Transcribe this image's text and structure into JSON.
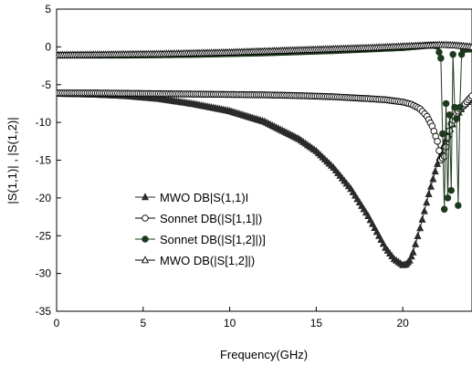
{
  "chart_data": {
    "type": "line",
    "xlabel": "Frequency(GHz)",
    "ylabel": "|S(1,1)| , |S(1,2)|",
    "xlim": [
      0,
      24
    ],
    "ylim": [
      -35,
      5
    ],
    "xticks": [
      0,
      5,
      10,
      15,
      20
    ],
    "yticks": [
      5,
      0,
      -5,
      -10,
      -15,
      -20,
      -25,
      -30,
      -35
    ],
    "grid": false,
    "legend_position": "lower-left",
    "series": [
      {
        "name": "MWO DB|S(1,1)I",
        "marker": "filled-triangle",
        "color": "#2a2a2a",
        "x": [
          0,
          2,
          4,
          6,
          8,
          10,
          12,
          14,
          15,
          16,
          17,
          18,
          18.5,
          19,
          19.5,
          20,
          20.2,
          20.4,
          20.6,
          21,
          21.5,
          22,
          22.5,
          23,
          23.5,
          24
        ],
        "y": [
          -6.2,
          -6.3,
          -6.5,
          -6.9,
          -7.6,
          -8.5,
          -9.9,
          -12.2,
          -13.8,
          -16.0,
          -18.8,
          -22.4,
          -24.5,
          -26.6,
          -28.1,
          -28.9,
          -28.8,
          -28.3,
          -27.2,
          -24.0,
          -19.5,
          -15.5,
          -12.2,
          -9.6,
          -7.8,
          -6.8
        ]
      },
      {
        "name": "Sonnet DB(|S[1,1]|)",
        "marker": "open-circle",
        "color": "#000000",
        "x": [
          0,
          2,
          4,
          6,
          8,
          10,
          12,
          14,
          16,
          18,
          19,
          20,
          20.5,
          21,
          21.4,
          21.7,
          22,
          22.2,
          22.4,
          22.6,
          22.8,
          23,
          23.2,
          23.5,
          23.8,
          24
        ],
        "y": [
          -6.1,
          -6.1,
          -6.15,
          -6.2,
          -6.25,
          -6.3,
          -6.35,
          -6.45,
          -6.6,
          -6.85,
          -7.0,
          -7.3,
          -7.6,
          -8.2,
          -9.2,
          -10.5,
          -12.5,
          -15.0,
          -14.5,
          -12.0,
          -10.2,
          -9.2,
          -8.5,
          -7.8,
          -7.0,
          -6.5
        ]
      },
      {
        "name": "Sonnet DB(|S[1,2]|)]",
        "marker": "filled-circle",
        "color": "#1e3a1e",
        "x": [
          0,
          2,
          4,
          6,
          8,
          10,
          12,
          14,
          16,
          18,
          19,
          20,
          20.5,
          21,
          21.5,
          21.8,
          22,
          22.2,
          22.4,
          22.5,
          22.6,
          22.7,
          22.8,
          22.9,
          23.0,
          23.1,
          23.2,
          23.3,
          23.4,
          23.5,
          23.7,
          24
        ],
        "y": [
          -1.1,
          -1.1,
          -1.1,
          -1.05,
          -1.0,
          -0.9,
          -0.8,
          -0.65,
          -0.5,
          -0.3,
          -0.2,
          -0.1,
          0,
          0.1,
          0.2,
          0.2,
          0.1,
          -1.5,
          -21.5,
          -7.5,
          -20.0,
          -9.0,
          -19.0,
          -1.0,
          -8.0,
          -9.5,
          -21.0,
          -8.0,
          -1.0,
          -0.4,
          -0.3,
          -0.3
        ]
      },
      {
        "name": "MWO DB(|S[1,2]|)",
        "marker": "open-triangle",
        "color": "#000000",
        "x": [
          0,
          2,
          4,
          6,
          8,
          10,
          12,
          14,
          16,
          18,
          19,
          20,
          20.5,
          21,
          21.5,
          22,
          22.5,
          23,
          23.5,
          24
        ],
        "y": [
          -1.1,
          -1.05,
          -1.0,
          -0.95,
          -0.85,
          -0.75,
          -0.6,
          -0.45,
          -0.3,
          -0.15,
          -0.05,
          0.05,
          0.1,
          0.15,
          0.2,
          0.25,
          0.25,
          0.2,
          0.1,
          0.0
        ]
      }
    ]
  }
}
